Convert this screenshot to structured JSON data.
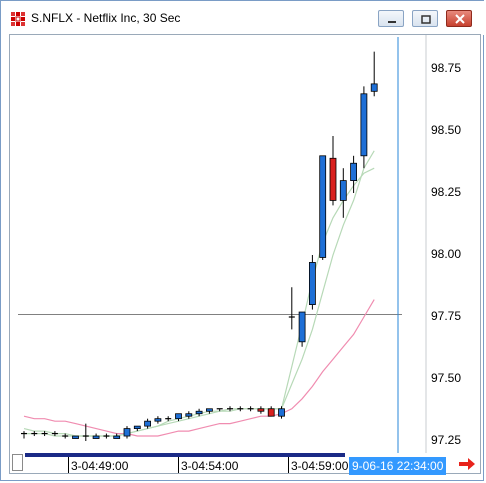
{
  "window": {
    "title": "S.NFLX - Netflix Inc, 30 Sec",
    "controls": [
      "minimize-icon",
      "restore-icon",
      "close-icon"
    ]
  },
  "axis": {
    "price_labels": [
      "98.75",
      "98.50",
      "98.25",
      "98.00",
      "97.75",
      "97.50",
      "97.25"
    ],
    "time_labels": [
      "3-04:49:00",
      "3-04:54:00",
      "3-04:59:00"
    ],
    "cursor_time": "9-06-16 22:34:00"
  },
  "colors": {
    "up_candle": "#1e6fd6",
    "down_candle": "#d9201e",
    "fast_ma": "#b7d9b7",
    "slow_ma": "#f08cb0",
    "cursor_line": "#2a87d8",
    "crosshair": "#808080",
    "time_bar": "#1a2a86",
    "cursor_time_bg": "#3399ff",
    "nav_arrow": "#e8231b"
  },
  "icons": {
    "app": "chart-grid-icon",
    "next": "arrow-right-icon"
  },
  "chart_data": {
    "type": "candlestick",
    "ylim": [
      97.2,
      98.9
    ],
    "crosshair_price": 97.76,
    "candles": [
      {
        "o": 97.28,
        "h": 97.29,
        "l": 97.26,
        "c": 97.28
      },
      {
        "o": 97.28,
        "h": 97.29,
        "l": 97.27,
        "c": 97.28
      },
      {
        "o": 97.28,
        "h": 97.29,
        "l": 97.27,
        "c": 97.28
      },
      {
        "o": 97.28,
        "h": 97.29,
        "l": 97.27,
        "c": 97.28
      },
      {
        "o": 97.27,
        "h": 97.28,
        "l": 97.26,
        "c": 97.27
      },
      {
        "o": 97.26,
        "h": 97.27,
        "l": 97.26,
        "c": 97.27
      },
      {
        "o": 97.27,
        "h": 97.32,
        "l": 97.25,
        "c": 97.27
      },
      {
        "o": 97.26,
        "h": 97.28,
        "l": 97.26,
        "c": 97.27
      },
      {
        "o": 97.27,
        "h": 97.28,
        "l": 97.26,
        "c": 97.27
      },
      {
        "o": 97.26,
        "h": 97.28,
        "l": 97.26,
        "c": 97.27
      },
      {
        "o": 97.27,
        "h": 97.31,
        "l": 97.26,
        "c": 97.3
      },
      {
        "o": 97.3,
        "h": 97.31,
        "l": 97.29,
        "c": 97.31
      },
      {
        "o": 97.31,
        "h": 97.34,
        "l": 97.3,
        "c": 97.33
      },
      {
        "o": 97.33,
        "h": 97.35,
        "l": 97.32,
        "c": 97.34
      },
      {
        "o": 97.34,
        "h": 97.35,
        "l": 97.33,
        "c": 97.34
      },
      {
        "o": 97.34,
        "h": 97.36,
        "l": 97.33,
        "c": 97.36
      },
      {
        "o": 97.35,
        "h": 97.37,
        "l": 97.34,
        "c": 97.36
      },
      {
        "o": 97.36,
        "h": 97.38,
        "l": 97.35,
        "c": 97.37
      },
      {
        "o": 97.37,
        "h": 97.38,
        "l": 97.36,
        "c": 97.38
      },
      {
        "o": 97.38,
        "h": 97.38,
        "l": 97.37,
        "c": 97.38
      },
      {
        "o": 97.38,
        "h": 97.39,
        "l": 97.37,
        "c": 97.38
      },
      {
        "o": 97.38,
        "h": 97.39,
        "l": 97.37,
        "c": 97.38
      },
      {
        "o": 97.38,
        "h": 97.39,
        "l": 97.37,
        "c": 97.38
      },
      {
        "o": 97.38,
        "h": 97.39,
        "l": 97.36,
        "c": 97.37
      },
      {
        "o": 97.38,
        "h": 97.39,
        "l": 97.35,
        "c": 97.35
      },
      {
        "o": 97.35,
        "h": 97.39,
        "l": 97.34,
        "c": 97.38
      },
      {
        "o": 97.75,
        "h": 97.87,
        "l": 97.7,
        "c": 97.75
      },
      {
        "o": 97.65,
        "h": 97.77,
        "l": 97.63,
        "c": 97.77
      },
      {
        "o": 97.8,
        "h": 98.0,
        "l": 97.78,
        "c": 97.97
      },
      {
        "o": 97.99,
        "h": 98.4,
        "l": 97.98,
        "c": 98.4
      },
      {
        "o": 98.39,
        "h": 98.48,
        "l": 98.2,
        "c": 98.22
      },
      {
        "o": 98.22,
        "h": 98.35,
        "l": 98.15,
        "c": 98.3
      },
      {
        "o": 98.3,
        "h": 98.4,
        "l": 98.25,
        "c": 98.37
      },
      {
        "o": 98.4,
        "h": 98.68,
        "l": 98.35,
        "c": 98.65
      },
      {
        "o": 98.66,
        "h": 98.82,
        "l": 98.64,
        "c": 98.69
      }
    ],
    "fast_ma": [
      97.3,
      97.29,
      97.29,
      97.28,
      97.28,
      97.27,
      97.27,
      97.27,
      97.27,
      97.27,
      97.28,
      97.29,
      97.3,
      97.31,
      97.32,
      97.33,
      97.34,
      97.35,
      97.36,
      97.37,
      97.37,
      97.38,
      97.38,
      97.38,
      97.38,
      97.38,
      97.48,
      97.58,
      97.7,
      97.85,
      98.0,
      98.12,
      98.22,
      98.35,
      98.42
    ],
    "slow_ma": [
      97.35,
      97.34,
      97.34,
      97.33,
      97.33,
      97.32,
      97.31,
      97.3,
      97.29,
      97.28,
      97.28,
      97.27,
      97.27,
      97.27,
      97.28,
      97.29,
      97.29,
      97.3,
      97.31,
      97.32,
      97.32,
      97.33,
      97.34,
      97.35,
      97.35,
      97.36,
      97.38,
      97.42,
      97.47,
      97.53,
      97.58,
      97.63,
      97.68,
      97.75,
      97.82
    ],
    "envelope": [
      97.28,
      97.28,
      97.28,
      97.27,
      97.27,
      97.27,
      97.27,
      97.27,
      97.27,
      97.27,
      97.28,
      97.29,
      97.3,
      97.31,
      97.33,
      97.34,
      97.35,
      97.36,
      97.37,
      97.37,
      97.38,
      97.38,
      97.38,
      97.38,
      97.38,
      97.38,
      97.55,
      97.72,
      97.9,
      98.05,
      98.15,
      98.22,
      98.28,
      98.33,
      98.35
    ]
  }
}
